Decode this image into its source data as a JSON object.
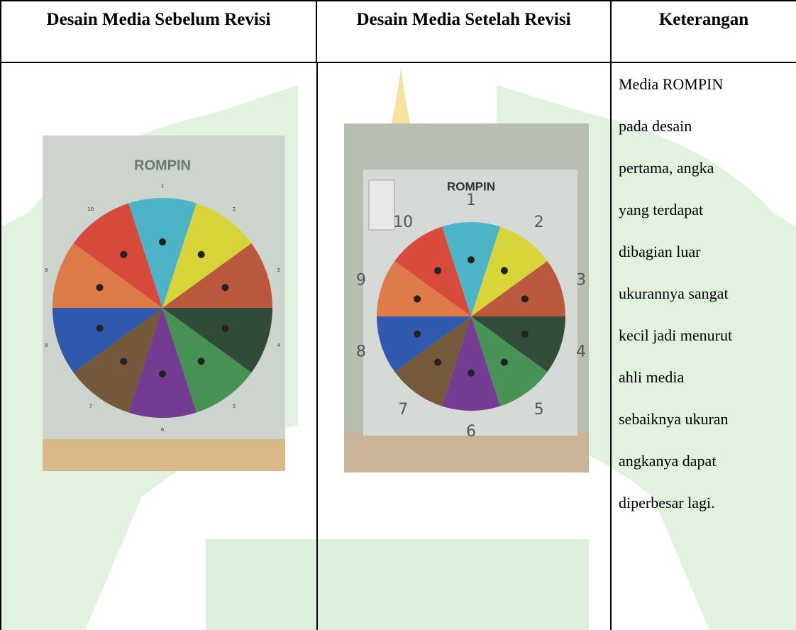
{
  "table": {
    "headers": [
      "Desain Media Sebelum Revisi",
      "Desain Media Setelah Revisi",
      "Keterangan"
    ],
    "images": [
      {
        "title": "ROMPIN",
        "numbers": [
          "1",
          "2",
          "3",
          "4",
          "5",
          "6",
          "7",
          "8",
          "9",
          "10"
        ]
      },
      {
        "title": "ROMPIN",
        "numbers": [
          "1",
          "2",
          "3",
          "4",
          "5",
          "6",
          "7",
          "8",
          "9",
          "10"
        ]
      }
    ],
    "note_lines": [
      "Media ROMPIN",
      "pada desain",
      "pertama, angka",
      "yang terdapat",
      "dibagian luar",
      "ukurannya sangat",
      "kecil jadi menurut",
      "ahli media",
      "sebaiknya ukuran",
      "angkanya dapat",
      "diperbesar lagi."
    ]
  }
}
